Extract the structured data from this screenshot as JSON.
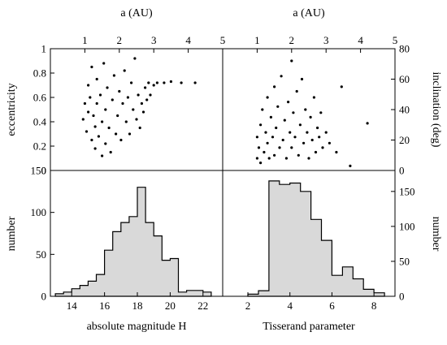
{
  "chart_data": [
    {
      "type": "scatter",
      "panel": "top-left",
      "xlabel": "a (AU)",
      "ylabel": "eccentricity",
      "xlim": [
        0,
        5
      ],
      "ylim": [
        0,
        1
      ],
      "xticks": [
        1,
        2,
        3,
        4,
        5
      ],
      "yticks": [
        0,
        0.2,
        0.4,
        0.6,
        0.8,
        1
      ],
      "point_color": "#000000",
      "points": [
        [
          0.95,
          0.42
        ],
        [
          1.0,
          0.55
        ],
        [
          1.05,
          0.32
        ],
        [
          1.1,
          0.48
        ],
        [
          1.1,
          0.7
        ],
        [
          1.15,
          0.6
        ],
        [
          1.2,
          0.25
        ],
        [
          1.2,
          0.85
        ],
        [
          1.25,
          0.45
        ],
        [
          1.3,
          0.18
        ],
        [
          1.3,
          0.36
        ],
        [
          1.35,
          0.75
        ],
        [
          1.35,
          0.55
        ],
        [
          1.4,
          0.28
        ],
        [
          1.45,
          0.62
        ],
        [
          1.5,
          0.12
        ],
        [
          1.5,
          0.4
        ],
        [
          1.55,
          0.88
        ],
        [
          1.6,
          0.22
        ],
        [
          1.6,
          0.5
        ],
        [
          1.65,
          0.68
        ],
        [
          1.7,
          0.35
        ],
        [
          1.75,
          0.15
        ],
        [
          1.8,
          0.58
        ],
        [
          1.85,
          0.78
        ],
        [
          1.9,
          0.3
        ],
        [
          1.95,
          0.45
        ],
        [
          2.0,
          0.65
        ],
        [
          2.05,
          0.25
        ],
        [
          2.1,
          0.55
        ],
        [
          2.15,
          0.82
        ],
        [
          2.2,
          0.4
        ],
        [
          2.25,
          0.6
        ],
        [
          2.3,
          0.3
        ],
        [
          2.35,
          0.72
        ],
        [
          2.4,
          0.5
        ],
        [
          2.45,
          0.92
        ],
        [
          2.5,
          0.42
        ],
        [
          2.55,
          0.62
        ],
        [
          2.6,
          0.35
        ],
        [
          2.65,
          0.55
        ],
        [
          2.7,
          0.48
        ],
        [
          2.75,
          0.68
        ],
        [
          2.8,
          0.58
        ],
        [
          2.85,
          0.72
        ],
        [
          2.9,
          0.62
        ],
        [
          3.0,
          0.7
        ],
        [
          3.1,
          0.72
        ],
        [
          3.3,
          0.72
        ],
        [
          3.5,
          0.73
        ],
        [
          3.8,
          0.72
        ],
        [
          4.2,
          0.72
        ]
      ]
    },
    {
      "type": "scatter",
      "panel": "top-right",
      "xlabel": "a (AU)",
      "ylabel": "inclination (deg)",
      "xlim": [
        0,
        5
      ],
      "ylim": [
        0,
        80
      ],
      "xticks": [
        1,
        2,
        3,
        4,
        5
      ],
      "yticks": [
        0,
        20,
        40,
        60,
        80
      ],
      "point_color": "#000000",
      "points": [
        [
          1.0,
          8
        ],
        [
          1.0,
          22
        ],
        [
          1.05,
          15
        ],
        [
          1.1,
          30
        ],
        [
          1.1,
          5
        ],
        [
          1.15,
          40
        ],
        [
          1.2,
          12
        ],
        [
          1.25,
          25
        ],
        [
          1.3,
          48
        ],
        [
          1.3,
          18
        ],
        [
          1.35,
          8
        ],
        [
          1.4,
          35
        ],
        [
          1.45,
          22
        ],
        [
          1.5,
          55
        ],
        [
          1.5,
          10
        ],
        [
          1.55,
          28
        ],
        [
          1.6,
          42
        ],
        [
          1.65,
          15
        ],
        [
          1.7,
          62
        ],
        [
          1.75,
          20
        ],
        [
          1.8,
          33
        ],
        [
          1.85,
          8
        ],
        [
          1.9,
          45
        ],
        [
          1.95,
          25
        ],
        [
          2.0,
          72
        ],
        [
          2.0,
          15
        ],
        [
          2.05,
          38
        ],
        [
          2.1,
          22
        ],
        [
          2.15,
          52
        ],
        [
          2.2,
          10
        ],
        [
          2.25,
          30
        ],
        [
          2.3,
          60
        ],
        [
          2.35,
          18
        ],
        [
          2.4,
          40
        ],
        [
          2.45,
          25
        ],
        [
          2.5,
          8
        ],
        [
          2.55,
          35
        ],
        [
          2.6,
          20
        ],
        [
          2.65,
          48
        ],
        [
          2.7,
          12
        ],
        [
          2.75,
          28
        ],
        [
          2.8,
          22
        ],
        [
          2.85,
          38
        ],
        [
          2.9,
          15
        ],
        [
          3.0,
          25
        ],
        [
          3.1,
          18
        ],
        [
          3.3,
          12
        ],
        [
          3.45,
          55
        ],
        [
          3.7,
          3
        ],
        [
          4.2,
          31
        ]
      ]
    },
    {
      "type": "histogram",
      "panel": "bottom-left",
      "xlabel": "absolute magnitude H",
      "ylabel": "number",
      "xlim": [
        12.7,
        23.2
      ],
      "ylim": [
        0,
        150
      ],
      "xticks": [
        14,
        16,
        18,
        20,
        22
      ],
      "yticks": [
        0,
        50,
        100,
        150
      ],
      "bin_edges": [
        13.0,
        13.5,
        14.0,
        14.5,
        15.0,
        15.5,
        16.0,
        16.5,
        17.0,
        17.5,
        18.0,
        18.5,
        19.0,
        19.5,
        20.0,
        20.5,
        21.0,
        21.5,
        22.0,
        22.5
      ],
      "counts": [
        3,
        5,
        9,
        13,
        18,
        26,
        55,
        77,
        88,
        95,
        130,
        88,
        72,
        43,
        45,
        5,
        7,
        7,
        5
      ],
      "fill": "#d9d9d9",
      "edge": "#000000"
    },
    {
      "type": "histogram",
      "panel": "bottom-right",
      "xlabel": "Tisserand parameter",
      "ylabel": "number",
      "xlim": [
        0.8,
        9.0
      ],
      "ylim": [
        0,
        180
      ],
      "xticks": [
        2,
        4,
        6,
        8
      ],
      "yticks": [
        0,
        50,
        100,
        150
      ],
      "bin_edges": [
        2.0,
        2.5,
        3.0,
        3.5,
        4.0,
        4.5,
        5.0,
        5.5,
        6.0,
        6.5,
        7.0,
        7.5,
        8.0,
        8.5
      ],
      "counts": [
        3,
        8,
        165,
        160,
        162,
        150,
        110,
        80,
        30,
        42,
        25,
        10,
        5
      ],
      "fill": "#d9d9d9",
      "edge": "#000000"
    }
  ]
}
